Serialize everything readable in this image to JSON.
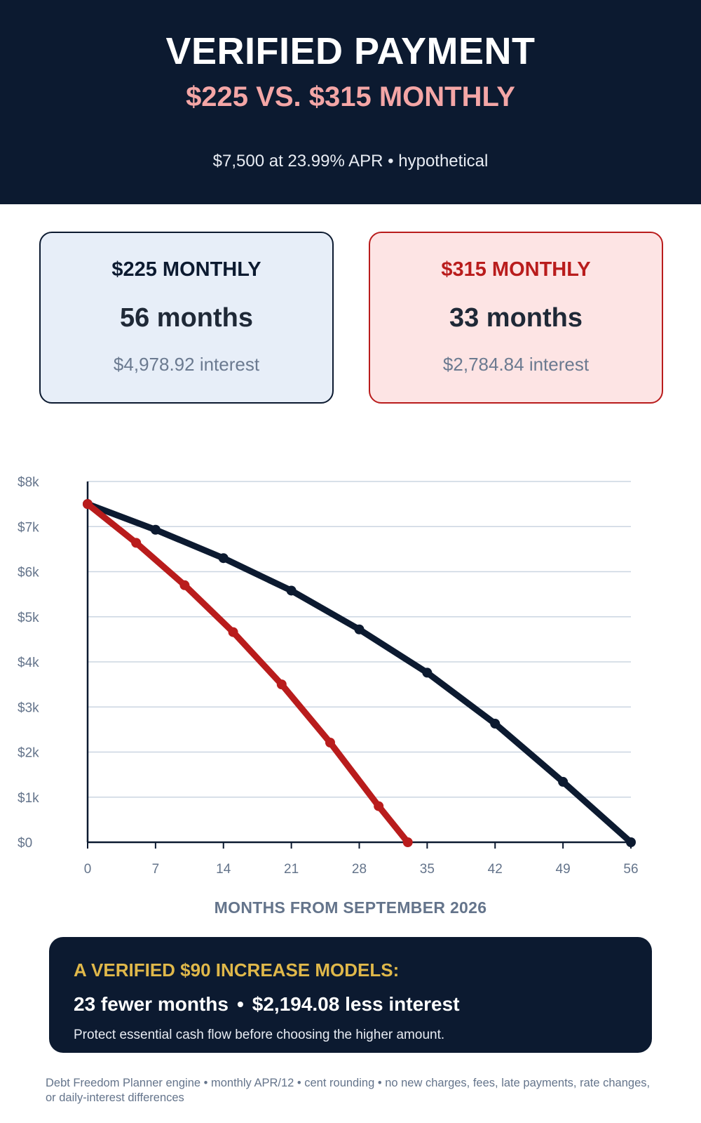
{
  "header": {
    "title": "VERIFIED PAYMENT",
    "subtitle": "$225 VS. $315 MONTHLY",
    "meta": "$7,500 at 23.99% APR  •  hypothetical"
  },
  "cards": [
    {
      "label": "$225 MONTHLY",
      "months": "56 months",
      "interest": "$4,978.92 interest",
      "color": "#0c1a30"
    },
    {
      "label": "$315 MONTHLY",
      "months": "33 months",
      "interest": "$2,784.84 interest",
      "color": "#b91c1c"
    }
  ],
  "chart_data": {
    "type": "line",
    "xlabel": "MONTHS FROM SEPTEMBER 2026",
    "ylabel": "",
    "xlim": [
      0,
      56
    ],
    "ylim": [
      0,
      8000
    ],
    "x_ticks": [
      0,
      7,
      14,
      21,
      28,
      35,
      42,
      49,
      56
    ],
    "y_ticks": [
      0,
      1000,
      2000,
      3000,
      4000,
      5000,
      6000,
      7000,
      8000
    ],
    "y_tick_labels": [
      "$0",
      "$1k",
      "$2k",
      "$3k",
      "$4k",
      "$5k",
      "$6k",
      "$7k",
      "$8k"
    ],
    "grid": true,
    "series": [
      {
        "payment": "$225",
        "color": "#0c1a30",
        "x": [
          0,
          7,
          14,
          21,
          28,
          35,
          42,
          49,
          56
        ],
        "y": [
          7500,
          6930,
          6300,
          5580,
          4720,
          3760,
          2630,
          1340,
          0
        ]
      },
      {
        "payment": "$315",
        "color": "#b91c1c",
        "x": [
          0,
          5,
          10,
          15,
          20,
          25,
          30,
          33
        ],
        "y": [
          7500,
          6640,
          5700,
          4660,
          3500,
          2210,
          800,
          0
        ]
      }
    ]
  },
  "callout": {
    "title": "A VERIFIED $90 INCREASE MODELS:",
    "fewer_months": "23 fewer months",
    "separator": "•",
    "less_interest": "$2,194.08 less interest",
    "note": "Protect essential cash flow before choosing the higher amount."
  },
  "footnote": "Debt Freedom Planner engine • monthly APR/12 • cent rounding • no new charges, fees, late payments, rate changes, or daily-interest differences"
}
